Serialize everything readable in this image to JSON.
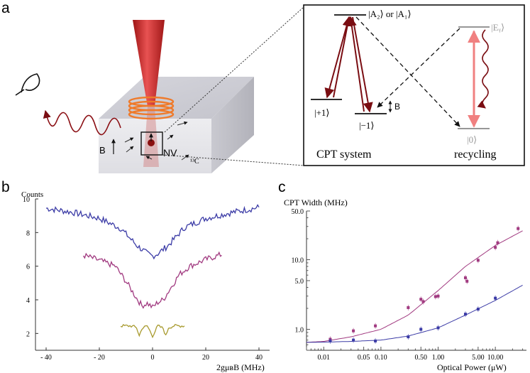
{
  "panel_labels": {
    "a": "a",
    "b": "b",
    "c": "c"
  },
  "panel_a": {
    "field_label": "B",
    "nv_label": "NV",
    "carbon_label": "¹³C",
    "inset": {
      "excited_label": "|A₂⟩ or |A₁⟩",
      "ey_label": "|Eᵧ⟩",
      "plus1_label": "|+1⟩",
      "minus1_label": "|−1⟩",
      "zero_label": "|0⟩",
      "b_label": "B",
      "cpt_system_label": "CPT system",
      "recycling_label": "recycling"
    }
  },
  "chart_data": [
    {
      "type": "line",
      "panel": "b",
      "ylabel": "Counts",
      "xlabel": "2gμʙB (MHz)",
      "xlim": [
        -44,
        44
      ],
      "ylim": [
        1,
        10
      ],
      "xticks": [
        -40,
        -20,
        0,
        20,
        40
      ],
      "xtick_labels": [
        "- 40",
        "- 20",
        "0",
        "20",
        "40"
      ],
      "yticks": [
        2,
        4,
        6,
        8,
        10
      ],
      "ytick_labels": [
        "2",
        "4",
        "6",
        "8",
        "10"
      ],
      "series": [
        {
          "color": "#3b3ba6",
          "x": [
            -40,
            -30,
            -20,
            -12,
            -6,
            -2,
            0,
            2,
            6,
            12,
            20,
            30,
            40
          ],
          "values": [
            9.45,
            9.2,
            8.85,
            8.25,
            7.25,
            6.75,
            6.6,
            6.75,
            7.25,
            8.3,
            8.85,
            9.2,
            9.5
          ]
        },
        {
          "color": "#a13a80",
          "x": [
            -26,
            -20,
            -14,
            -10,
            -6,
            -4,
            -2,
            0,
            2,
            4,
            6,
            10,
            14,
            20,
            26
          ],
          "values": [
            6.65,
            6.35,
            6.0,
            5.1,
            4.1,
            3.65,
            3.8,
            3.55,
            3.85,
            4.0,
            4.5,
            5.5,
            6.0,
            6.4,
            6.7
          ]
        },
        {
          "color": "#a89a2e",
          "x": [
            -12,
            -8,
            -6,
            -5,
            -4,
            -2,
            0,
            2,
            4,
            5,
            6,
            8,
            12
          ],
          "values": [
            2.45,
            2.45,
            2.35,
            1.85,
            2.3,
            2.45,
            1.85,
            2.45,
            2.3,
            1.85,
            2.35,
            2.45,
            2.45
          ]
        }
      ]
    },
    {
      "type": "scatter",
      "panel": "c",
      "ylabel": "CPT Width (MHz)",
      "xlabel": "Optical Power (μW)",
      "xscale": "log",
      "yscale": "log",
      "xlim": [
        0.005,
        35
      ],
      "ylim": [
        0.5,
        50
      ],
      "xticks": [
        0.01,
        0.05,
        0.1,
        0.5,
        1,
        5,
        10
      ],
      "xtick_labels": [
        "0.01",
        "0.05",
        "0.10",
        "0.50",
        "1.00",
        "5.00",
        "10.00"
      ],
      "yticks": [
        1,
        5,
        10,
        50
      ],
      "ytick_labels": [
        "1.0",
        "5.0",
        "10.0",
        "50.0"
      ],
      "series": [
        {
          "color": "#a13a80",
          "points": [
            [
              0.013,
              0.72
            ],
            [
              0.033,
              0.95
            ],
            [
              0.08,
              1.12
            ],
            [
              0.3,
              2.05
            ],
            [
              0.5,
              2.7
            ],
            [
              0.55,
              2.5
            ],
            [
              0.9,
              2.95
            ],
            [
              1.0,
              3.0
            ],
            [
              3.0,
              5.5
            ],
            [
              3.2,
              4.9
            ],
            [
              5.0,
              9.8
            ],
            [
              10.0,
              15.0
            ],
            [
              11.0,
              17.5
            ],
            [
              25.0,
              28.0
            ]
          ],
          "fit": [
            [
              0.005,
              0.65
            ],
            [
              0.01,
              0.67
            ],
            [
              0.03,
              0.78
            ],
            [
              0.1,
              1.0
            ],
            [
              0.3,
              1.6
            ],
            [
              1.0,
              3.6
            ],
            [
              3.0,
              8.0
            ],
            [
              10.0,
              16.0
            ],
            [
              30.0,
              26.0
            ]
          ]
        },
        {
          "color": "#3b3ba6",
          "points": [
            [
              0.013,
              0.68
            ],
            [
              0.033,
              0.7
            ],
            [
              0.08,
              0.68
            ],
            [
              0.3,
              0.78
            ],
            [
              0.5,
              1.0
            ],
            [
              1.0,
              1.05
            ],
            [
              3.0,
              1.65
            ],
            [
              5.0,
              1.95
            ],
            [
              10.0,
              2.8
            ]
          ],
          "fit": [
            [
              0.005,
              0.65
            ],
            [
              0.01,
              0.655
            ],
            [
              0.03,
              0.67
            ],
            [
              0.1,
              0.7
            ],
            [
              0.3,
              0.8
            ],
            [
              1.0,
              1.05
            ],
            [
              3.0,
              1.6
            ],
            [
              10.0,
              2.6
            ],
            [
              30.0,
              4.3
            ]
          ]
        }
      ]
    }
  ]
}
